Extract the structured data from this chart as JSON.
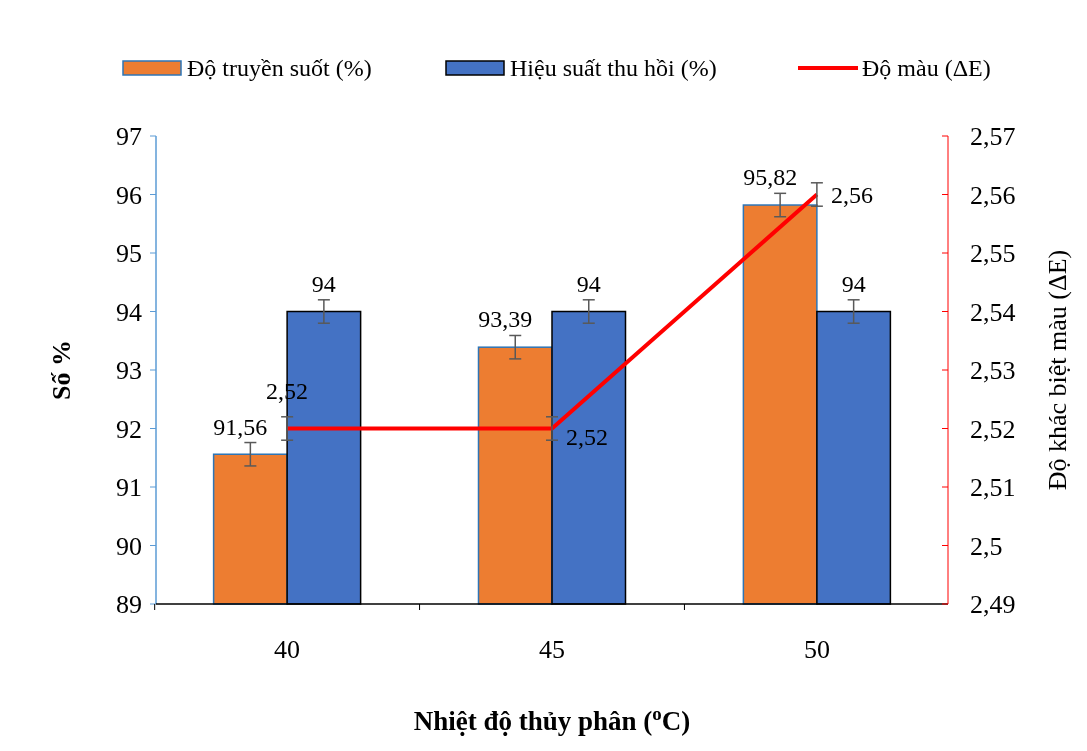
{
  "chart_data": {
    "type": "bar",
    "categories": [
      "40",
      "45",
      "50"
    ],
    "xlabel": "Nhiệt độ thủy phân ($^{o}$C)",
    "ylabel": "Số %",
    "y2label": "Độ khác biệt màu (ΔE)",
    "ylim": [
      89,
      97
    ],
    "yticks": [
      89,
      90,
      91,
      92,
      93,
      94,
      95,
      96,
      97
    ],
    "y2lim": [
      2.49,
      2.57
    ],
    "y2ticks": [
      {
        "value": 2.49,
        "label": "2,49"
      },
      {
        "value": 2.5,
        "label": "2,5"
      },
      {
        "value": 2.51,
        "label": "2,51"
      },
      {
        "value": 2.52,
        "label": "2,52"
      },
      {
        "value": 2.53,
        "label": "2,53"
      },
      {
        "value": 2.54,
        "label": "2,54"
      },
      {
        "value": 2.55,
        "label": "2,55"
      },
      {
        "value": 2.56,
        "label": "2,56"
      },
      {
        "value": 2.57,
        "label": "2,57"
      }
    ],
    "legend": "top",
    "grid": false,
    "line_style": "solid",
    "marker": "none",
    "series": [
      {
        "name": "Độ truyền suốt (%)",
        "color": "#ed7d31",
        "values": [
          91.56,
          93.39,
          95.82
        ],
        "errors": [
          0.2,
          0.2,
          0.2
        ],
        "value_labels": [
          "91,56",
          "93,39",
          "95,82"
        ]
      },
      {
        "name": "Hiệu suất thu hồi (%)",
        "color": "#4472c4",
        "values": [
          94,
          94,
          94
        ],
        "errors": [
          0.2,
          0.2,
          0.2
        ],
        "value_labels": [
          "94",
          "94",
          "94"
        ]
      },
      {
        "name": "Độ màu (ΔE)",
        "type": "line",
        "axis": "y2",
        "color": "#ff0000",
        "values": [
          2.52,
          2.52,
          2.56
        ],
        "errors": [
          0.002,
          0.002,
          0.002
        ],
        "value_labels": [
          "2,52",
          "2,52",
          "2,56"
        ]
      }
    ]
  }
}
